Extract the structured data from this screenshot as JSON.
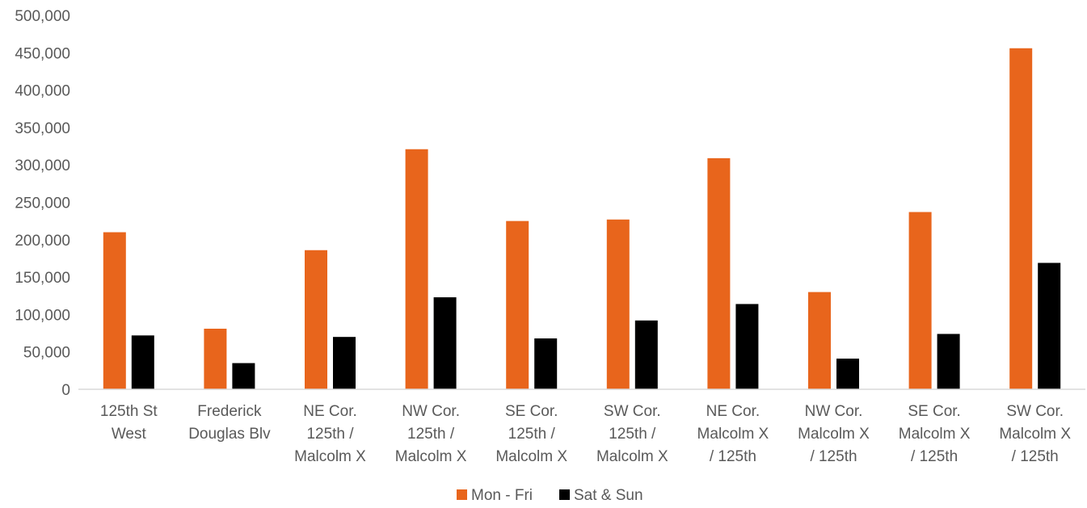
{
  "chart_data": {
    "type": "bar",
    "categories": [
      [
        "125th St",
        "West"
      ],
      [
        "Frederick",
        "Douglas Blv"
      ],
      [
        "NE Cor.",
        "125th /",
        "Malcolm X"
      ],
      [
        "NW Cor.",
        "125th /",
        "Malcolm X"
      ],
      [
        "SE Cor.",
        "125th /",
        "Malcolm X"
      ],
      [
        "SW Cor.",
        "125th /",
        "Malcolm X"
      ],
      [
        "NE Cor.",
        "Malcolm X",
        "/ 125th"
      ],
      [
        "NW Cor.",
        "Malcolm X",
        "/ 125th"
      ],
      [
        "SE Cor.",
        "Malcolm X",
        "/ 125th"
      ],
      [
        "SW Cor.",
        "Malcolm X",
        "/ 125th"
      ]
    ],
    "series": [
      {
        "name": "Mon - Fri",
        "color": "#E8651C",
        "values": [
          210000,
          81000,
          186000,
          321000,
          225000,
          227000,
          309000,
          130000,
          237000,
          456000
        ]
      },
      {
        "name": "Sat & Sun",
        "color": "#000000",
        "values": [
          72000,
          35000,
          70000,
          123000,
          68000,
          92000,
          114000,
          41000,
          74000,
          169000
        ]
      }
    ],
    "ylim": [
      0,
      500000
    ],
    "yticks": [
      "0",
      "50,000",
      "100,000",
      "150,000",
      "200,000",
      "250,000",
      "300,000",
      "350,000",
      "400,000",
      "450,000",
      "500,000"
    ],
    "grid": false,
    "legend_position": "bottom-center"
  }
}
